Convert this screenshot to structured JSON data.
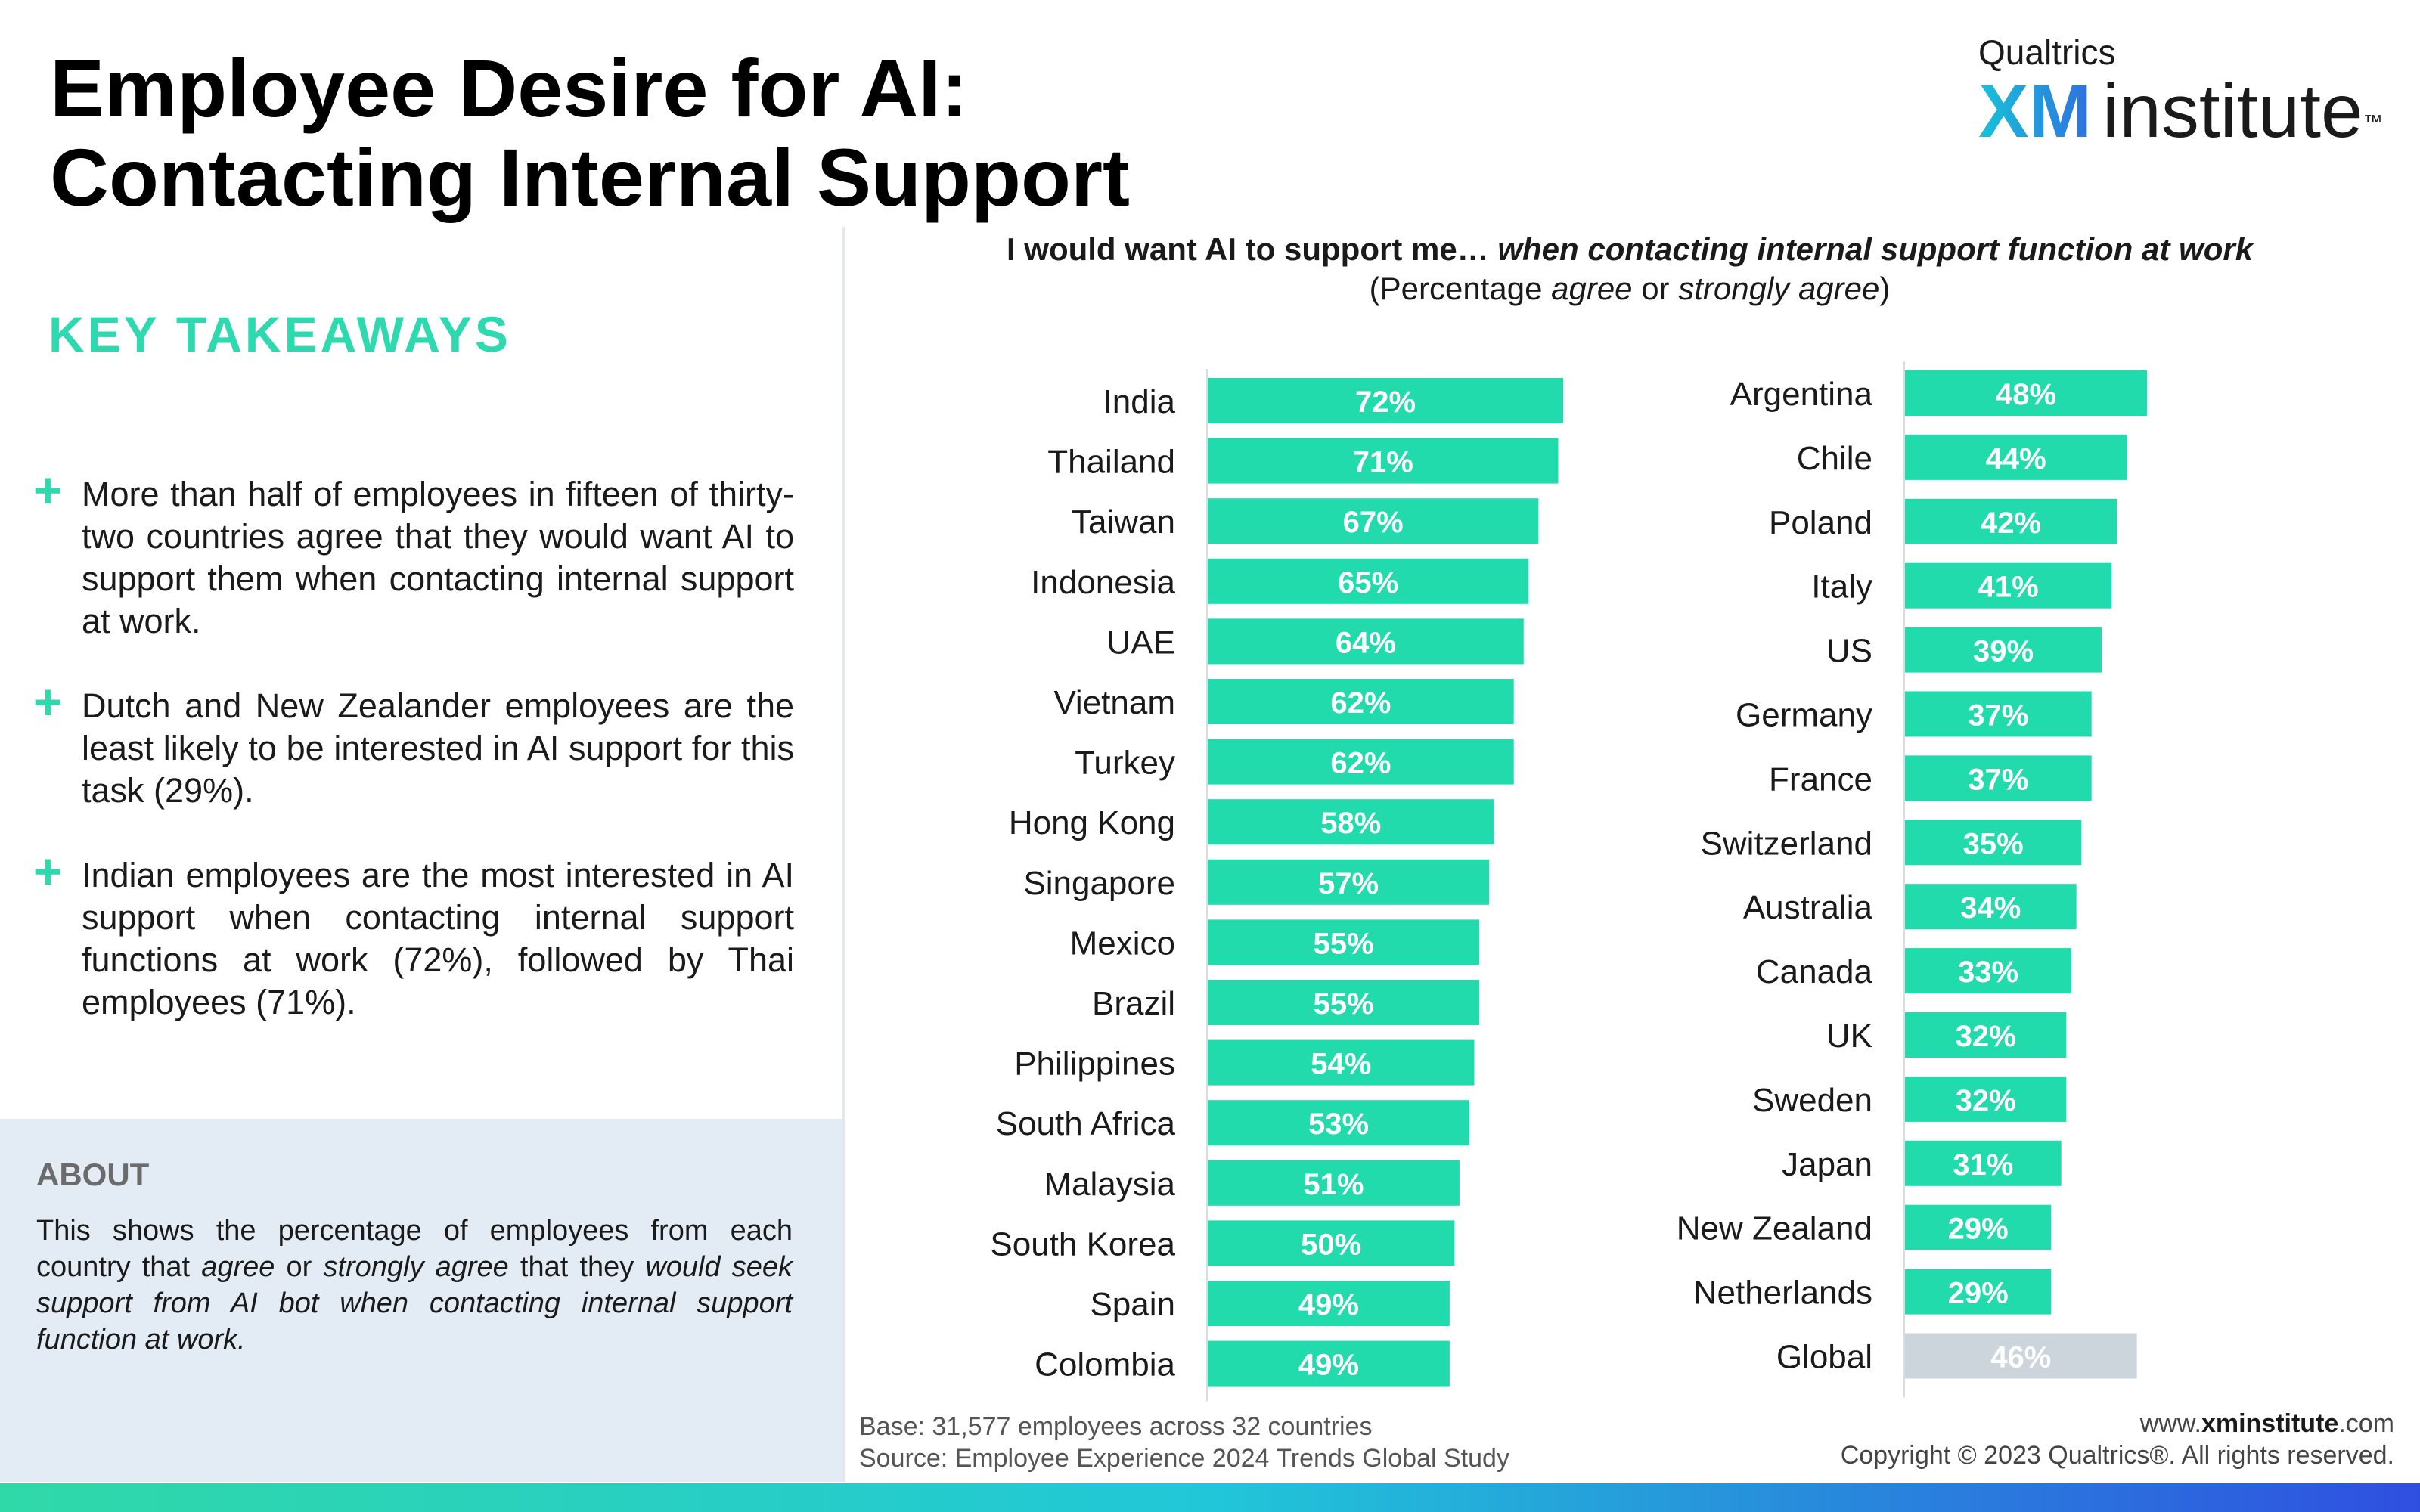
{
  "header": {
    "title": "Employee Desire for AI: Contacting Internal Support",
    "logo_small": "Qualtrics",
    "logo_xm": "XM",
    "logo_institute": "institute",
    "logo_tm": "™"
  },
  "takeaways": {
    "title": "KEY TAKEAWAYS",
    "bullets": [
      "More than half of employees in fifteen of thirty-two countries agree that they would want AI to support them when contacting internal support at work.",
      "Dutch and New Zealander employees are the least likely to be interested in AI support for this task (29%).",
      "Indian employees are the most interested in AI support when contacting internal support functions at work (72%), followed by Thai employees (71%)."
    ],
    "bullet_symbol": "+"
  },
  "about": {
    "title": "ABOUT",
    "text_1": "This shows the percentage of employees from each country that ",
    "text_agree": "agree",
    "text_or": " or ",
    "text_strongly": "strongly agree",
    "text_2": " that they ",
    "text_italic": "would seek support from AI bot when contacting internal support function at work."
  },
  "footer": {
    "base": "Base: 31,577 employees across 32 countries",
    "source": "Source: Employee Experience 2024 Trends Global Study",
    "web_prefix": "www.",
    "web_strong": "xminstitute",
    "web_suffix": ".com",
    "copyright": "Copyright © 2023 Qualtrics®. All rights reserved."
  },
  "colors": {
    "bar": "#21dbac",
    "global_bar": "#cdd5dc",
    "accent": "#2ed9b0",
    "about_bg": "#e3ebf5"
  },
  "chart_data": {
    "type": "bar",
    "orientation": "horizontal",
    "title_plain": "I would want AI to support me… ",
    "title_italic": "when contacting internal support function at work",
    "subtitle_open": "(Percentage ",
    "subtitle_agree": "agree",
    "subtitle_or": " or ",
    "subtitle_strongly": "strongly agree",
    "subtitle_close": ")",
    "value_suffix": "%",
    "xlim": [
      0,
      100
    ],
    "panels": [
      {
        "categories": [
          "India",
          "Thailand",
          "Taiwan",
          "Indonesia",
          "UAE",
          "Vietnam",
          "Turkey",
          "Hong Kong",
          "Singapore",
          "Mexico",
          "Brazil",
          "Philippines",
          "South Africa",
          "Malaysia",
          "South Korea",
          "Spain",
          "Colombia"
        ],
        "values": [
          72,
          71,
          67,
          65,
          64,
          62,
          62,
          58,
          57,
          55,
          55,
          54,
          53,
          51,
          50,
          49,
          49
        ]
      },
      {
        "categories": [
          "Argentina",
          "Chile",
          "Poland",
          "Italy",
          "US",
          "Germany",
          "France",
          "Switzerland",
          "Australia",
          "Canada",
          "UK",
          "Sweden",
          "Japan",
          "New Zealand",
          "Netherlands",
          "Global"
        ],
        "values": [
          48,
          44,
          42,
          41,
          39,
          37,
          37,
          35,
          34,
          33,
          32,
          32,
          31,
          29,
          29,
          46
        ],
        "highlight_category": "Global"
      }
    ]
  }
}
